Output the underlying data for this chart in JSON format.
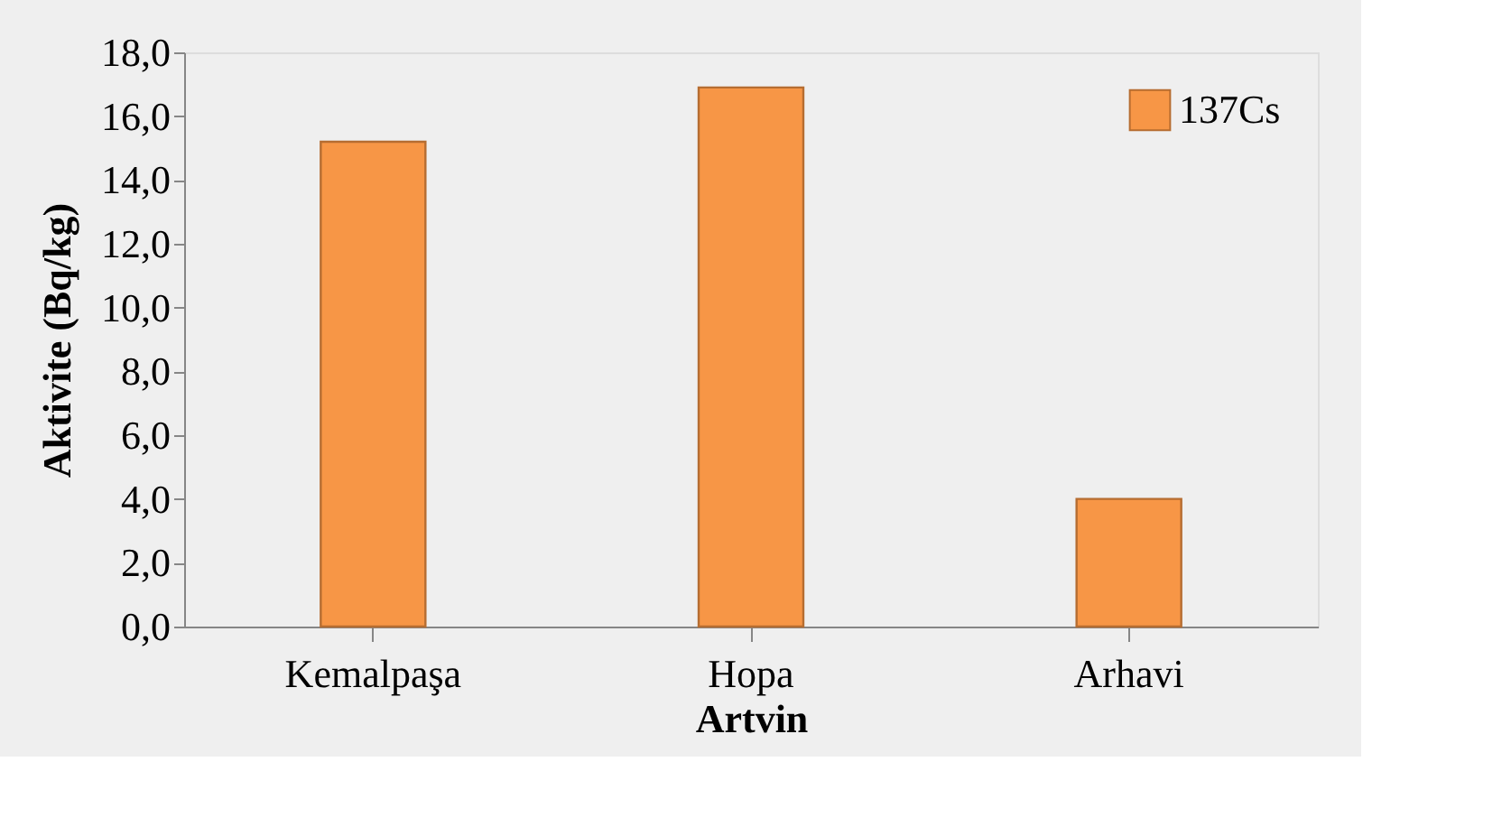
{
  "chart_data": {
    "type": "bar",
    "xlabel": "Artvin",
    "ylabel": "Aktivite (Bq/kg)",
    "categories": [
      "Kemalpaşa",
      "Hopa",
      "Arhavi"
    ],
    "series": [
      {
        "name": "137Cs",
        "color": "#f79646",
        "values": [
          15.2,
          16.9,
          4.0
        ]
      }
    ],
    "ylim": [
      0,
      18
    ],
    "yticks": [
      {
        "value": 0,
        "label": "0,0"
      },
      {
        "value": 2,
        "label": "2,0"
      },
      {
        "value": 4,
        "label": "4,0"
      },
      {
        "value": 6,
        "label": "6,0"
      },
      {
        "value": 8,
        "label": "8,0"
      },
      {
        "value": 10,
        "label": "10,0"
      },
      {
        "value": 12,
        "label": "12,0"
      },
      {
        "value": 14,
        "label": "14,0"
      },
      {
        "value": 16,
        "label": "16,0"
      },
      {
        "value": 18,
        "label": "18,0"
      }
    ],
    "grid": false,
    "legend": "top right"
  }
}
